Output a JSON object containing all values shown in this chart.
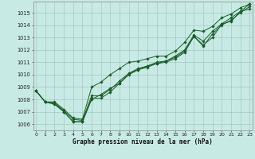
{
  "xlabel": "Graphe pression niveau de la mer (hPa)",
  "bg_color": "#c8eae4",
  "grid_color": "#9dbfba",
  "line_color": "#1a5c28",
  "ylim": [
    1005.5,
    1015.9
  ],
  "xlim": [
    -0.3,
    23.3
  ],
  "yticks": [
    1006,
    1007,
    1008,
    1009,
    1010,
    1011,
    1012,
    1013,
    1014,
    1015
  ],
  "xticks": [
    0,
    1,
    2,
    3,
    4,
    5,
    6,
    7,
    8,
    9,
    10,
    11,
    12,
    13,
    14,
    15,
    16,
    17,
    18,
    19,
    20,
    21,
    22,
    23
  ],
  "xtick_labels": [
    "0",
    "1",
    "2",
    "3",
    "4",
    "5",
    "6",
    "7",
    "8",
    "9",
    "10",
    "11",
    "12",
    "13",
    "14",
    "15",
    "16",
    "17",
    "18",
    "19",
    "20",
    "21",
    "22",
    "23"
  ],
  "series": [
    [
      1008.7,
      1007.8,
      1007.7,
      1007.0,
      1006.2,
      1006.2,
      1008.0,
      1008.4,
      1008.9,
      1009.3,
      1010.1,
      1010.4,
      1010.7,
      1010.9,
      1011.1,
      1011.4,
      1011.9,
      1013.1,
      1012.4,
      1013.0,
      1014.1,
      1014.3,
      1015.1,
      1015.3
    ],
    [
      1008.7,
      1007.8,
      1007.6,
      1007.0,
      1006.2,
      1006.2,
      1008.1,
      1008.1,
      1008.6,
      1009.3,
      1010.0,
      1010.4,
      1010.6,
      1010.9,
      1011.0,
      1011.3,
      1011.8,
      1013.1,
      1012.3,
      1013.3,
      1014.0,
      1014.4,
      1015.0,
      1015.5
    ],
    [
      1008.7,
      1007.8,
      1007.7,
      1007.1,
      1006.4,
      1006.3,
      1008.3,
      1008.3,
      1008.8,
      1009.5,
      1010.1,
      1010.5,
      1010.7,
      1011.0,
      1011.1,
      1011.5,
      1012.0,
      1013.2,
      1012.7,
      1013.5,
      1014.1,
      1014.6,
      1015.1,
      1015.7
    ],
    [
      1008.7,
      1007.8,
      1007.8,
      1007.2,
      1006.5,
      1006.4,
      1009.0,
      1009.4,
      1010.0,
      1010.5,
      1011.0,
      1011.1,
      1011.3,
      1011.5,
      1011.5,
      1011.9,
      1012.6,
      1013.6,
      1013.5,
      1013.9,
      1014.6,
      1014.9,
      1015.4,
      1015.7
    ]
  ]
}
